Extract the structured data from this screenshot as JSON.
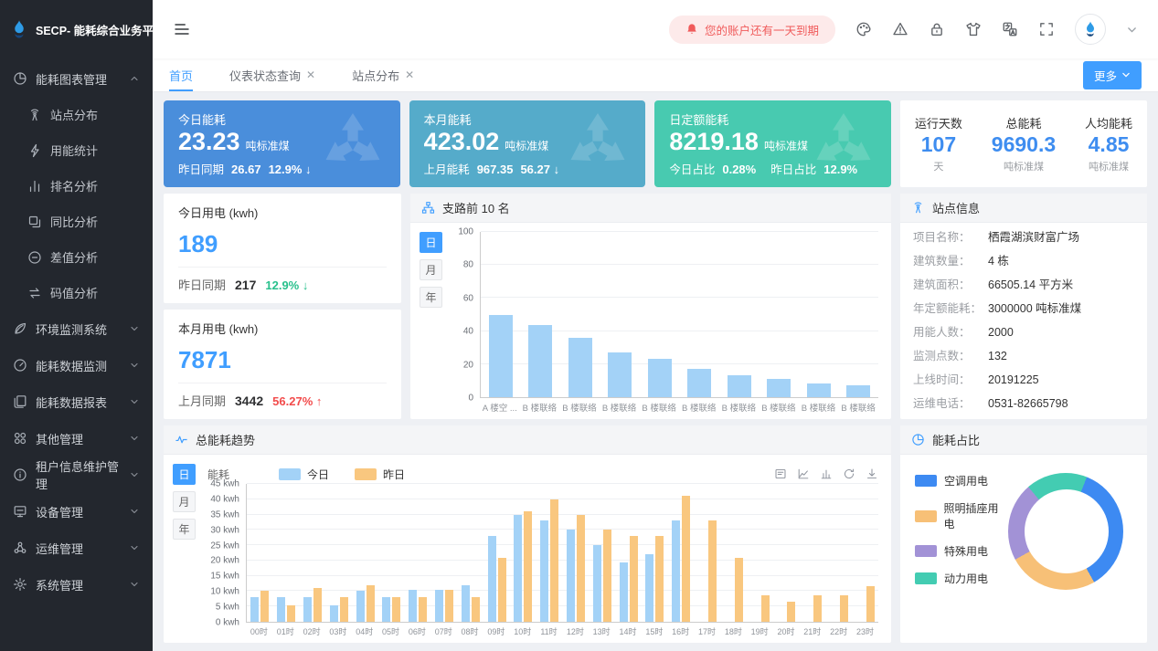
{
  "app": {
    "logo_title": "SECP- 能耗综合业务平台"
  },
  "header": {
    "alert": "您的账户还有一天到期",
    "icons": [
      "palette",
      "warning",
      "lock",
      "tshirt",
      "language",
      "fullscreen"
    ]
  },
  "tabs": {
    "items": [
      {
        "label": "首页",
        "closable": false,
        "active": true
      },
      {
        "label": "仪表状态查询",
        "closable": true,
        "active": false
      },
      {
        "label": "站点分布",
        "closable": true,
        "active": false
      }
    ],
    "more_label": "更多"
  },
  "sidebar": {
    "items": [
      {
        "icon": "pie-chart",
        "label": "能耗图表管理",
        "expanded": true,
        "children": [
          {
            "icon": "signal-tower",
            "label": "站点分布"
          },
          {
            "icon": "lightning",
            "label": "用能统计"
          },
          {
            "icon": "ranking",
            "label": "排名分析"
          },
          {
            "icon": "compare",
            "label": "同比分析"
          },
          {
            "icon": "minus-circle",
            "label": "差值分析"
          },
          {
            "icon": "swap",
            "label": "码值分析"
          }
        ]
      },
      {
        "icon": "leaf",
        "label": "环境监测系统"
      },
      {
        "icon": "gauge",
        "label": "能耗数据监测"
      },
      {
        "icon": "report",
        "label": "能耗数据报表"
      },
      {
        "icon": "grid",
        "label": "其他管理"
      },
      {
        "icon": "info",
        "label": "租户信息维护管理"
      },
      {
        "icon": "monitor",
        "label": "设备管理"
      },
      {
        "icon": "nodes",
        "label": "运维管理"
      },
      {
        "icon": "gear",
        "label": "系统管理"
      }
    ]
  },
  "cards": [
    {
      "title": "今日能耗",
      "value": "23.23",
      "unit": "吨标准煤",
      "sub_label": "昨日同期",
      "sub_value": "26.67",
      "pct": "12.9% ↓",
      "color": "#4a8edb"
    },
    {
      "title": "本月能耗",
      "value": "423.02",
      "unit": "吨标准煤",
      "sub_label": "上月能耗",
      "sub_value": "967.35",
      "pct": "56.27 ↓",
      "color": "#55abca"
    },
    {
      "title": "日定额能耗",
      "value": "8219.18",
      "unit": "吨标准煤",
      "subs": [
        {
          "label": "今日占比",
          "value": "0.28%"
        },
        {
          "label": "昨日占比",
          "value": "12.9%"
        }
      ],
      "color": "#48cab0"
    }
  ],
  "run_stats": [
    {
      "label": "运行天数",
      "value": "107",
      "unit": "天"
    },
    {
      "label": "总能耗",
      "value": "9690.3",
      "unit": "吨标准煤"
    },
    {
      "label": "人均能耗",
      "value": "4.85",
      "unit": "吨标准煤"
    }
  ],
  "today_power": {
    "title": "今日用电 (kwh)",
    "value": "189",
    "sub_label": "昨日同期",
    "sub_value": "217",
    "pct": "12.9% ↓",
    "pct_dir": "down"
  },
  "month_power": {
    "title": "本月用电 (kwh)",
    "value": "7871",
    "sub_label": "上月同期",
    "sub_value": "3442",
    "pct": "56.27% ↑",
    "pct_dir": "up"
  },
  "site_info": {
    "title": "站点信息",
    "rows": [
      {
        "label": "项目名称：",
        "value": "栖霞湖滨财富广场"
      },
      {
        "label": "建筑数量：",
        "value": "4 栋"
      },
      {
        "label": "建筑面积：",
        "value": "66505.14 平方米"
      },
      {
        "label": "年定额能耗：",
        "value": "3000000 吨标准煤"
      },
      {
        "label": "用能人数：",
        "value": "2000"
      },
      {
        "label": "监测点数：",
        "value": "132"
      },
      {
        "label": "上线时间：",
        "value": "20191225"
      },
      {
        "label": "运维电话：",
        "value": "0531-82665798"
      }
    ]
  },
  "chart_data": [
    {
      "type": "bar",
      "title": "支路前 10 名",
      "period_options": [
        "日",
        "月",
        "年"
      ],
      "period_selected": "日",
      "categories": [
        "A 楼空 ...",
        "B 楼联络",
        "B 楼联络",
        "B 楼联络",
        "B 楼联络",
        "B 楼联络",
        "B 楼联络",
        "B 楼联络",
        "B 楼联络",
        "B 楼联络"
      ],
      "values": [
        50,
        43.5,
        36,
        27,
        23,
        17,
        13.5,
        11,
        8.5,
        7
      ],
      "bar_color": "#a3d2f7",
      "ylim": [
        0,
        100
      ],
      "ytick_step": 20,
      "grid": true
    },
    {
      "type": "bar",
      "title": "总能耗趋势",
      "ylabel": "能耗",
      "unit": "kwh",
      "period_options": [
        "日",
        "月",
        "年"
      ],
      "period_selected": "日",
      "legend_position": "top",
      "toolbox": [
        "data-view",
        "line-chart",
        "bar-chart",
        "restore",
        "download"
      ],
      "categories": [
        "00时",
        "01时",
        "02时",
        "03时",
        "04时",
        "05时",
        "06时",
        "07时",
        "08时",
        "09时",
        "10时",
        "11时",
        "12时",
        "13时",
        "14时",
        "15时",
        "16时",
        "17时",
        "18时",
        "19时",
        "20时",
        "21时",
        "22时",
        "23时"
      ],
      "series": [
        {
          "name": "今日",
          "color": "#a3d2f7",
          "values": [
            8,
            8,
            8,
            5.5,
            10,
            8,
            10.5,
            10.5,
            12,
            28,
            35,
            33,
            30,
            25,
            19.5,
            22,
            33,
            null,
            null,
            null,
            null,
            null,
            null,
            null
          ]
        },
        {
          "name": "昨日",
          "color": "#f9c77f",
          "values": [
            10,
            5.5,
            11,
            8,
            12,
            8,
            8,
            10.5,
            8,
            21,
            36,
            40,
            35,
            30,
            28,
            28,
            41,
            33,
            21,
            8.5,
            6.5,
            8.5,
            8.5,
            11.5
          ]
        }
      ],
      "ylim": [
        0,
        45
      ],
      "ytick_step": 5,
      "grid": true
    },
    {
      "type": "pie",
      "title": "能耗占比",
      "legend_position": "left",
      "start_deg": -40,
      "draw_order": [
        3,
        0,
        1,
        2
      ],
      "segments": [
        {
          "name": "空调用电",
          "pct": 36,
          "color": "#3d8af2"
        },
        {
          "name": "照明插座用电",
          "pct": 25,
          "color": "#f7c077"
        },
        {
          "name": "特殊用电",
          "pct": 22,
          "color": "#a292d6"
        },
        {
          "name": "动力用电",
          "pct": 17,
          "color": "#43ccb2"
        }
      ]
    }
  ]
}
